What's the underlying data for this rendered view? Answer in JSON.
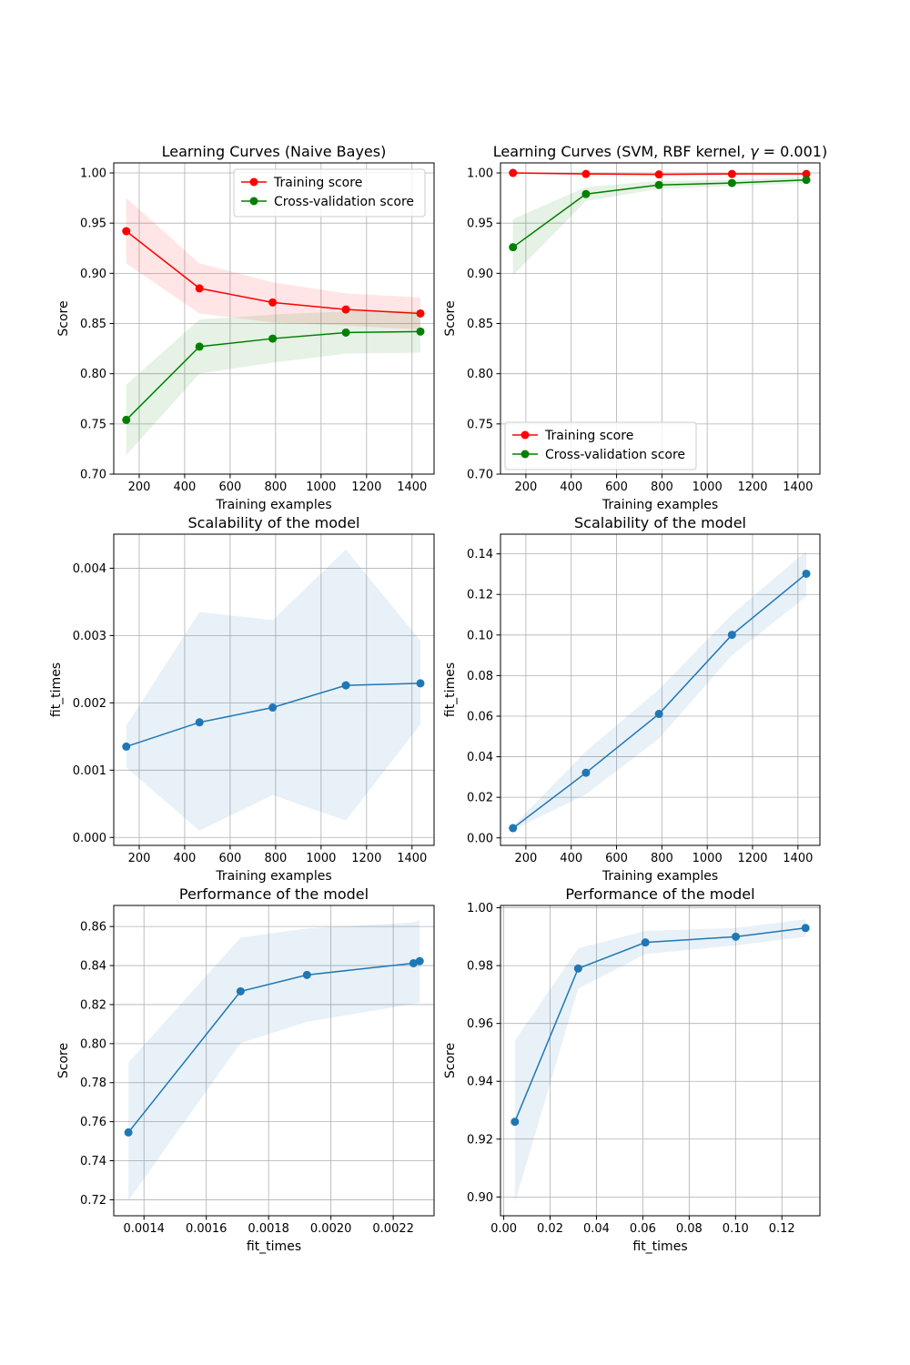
{
  "colors": {
    "train": "#ff0000",
    "cv": "#008000",
    "blue": "#1f77b4",
    "grid": "#b0b0b0",
    "axes": "#000000"
  },
  "chart_data": [
    {
      "id": "nb-learning",
      "type": "line",
      "title": "Learning Curves (Naive Bayes)",
      "title_parts": [
        {
          "t": "Learning Curves (Naive Bayes)"
        }
      ],
      "xlabel": "Training examples",
      "ylabel": "Score",
      "xlim": [
        88,
        1497
      ],
      "ylim": [
        0.7,
        1.01
      ],
      "xticks": [
        200,
        400,
        600,
        800,
        1000,
        1200,
        1400
      ],
      "xtick_labels": [
        "200",
        "400",
        "600",
        "800",
        "1000",
        "1200",
        "1400"
      ],
      "yticks": [
        0.7,
        0.75,
        0.8,
        0.85,
        0.9,
        0.95,
        1.0
      ],
      "ytick_labels": [
        "0.70",
        "0.75",
        "0.80",
        "0.85",
        "0.90",
        "0.95",
        "1.00"
      ],
      "grid": true,
      "legend": "upper-right",
      "x": [
        143,
        465,
        787,
        1109,
        1437
      ],
      "series": [
        {
          "name": "Training score",
          "color": "#ff0000",
          "values": [
            0.942,
            0.885,
            0.871,
            0.864,
            0.86
          ],
          "band_low": [
            0.91,
            0.86,
            0.851,
            0.848,
            0.844
          ],
          "band_high": [
            0.975,
            0.91,
            0.891,
            0.88,
            0.876
          ]
        },
        {
          "name": "Cross-validation score",
          "color": "#008000",
          "values": [
            0.754,
            0.827,
            0.835,
            0.841,
            0.842
          ],
          "band_low": [
            0.719,
            0.8,
            0.811,
            0.82,
            0.821
          ],
          "band_high": [
            0.789,
            0.854,
            0.859,
            0.862,
            0.863
          ]
        }
      ]
    },
    {
      "id": "svm-learning",
      "type": "line",
      "title": "Learning Curves (SVM, RBF kernel, γ = 0.001)",
      "title_parts": [
        {
          "t": "Learning Curves (SVM, RBF kernel, "
        },
        {
          "t": "γ",
          "italic": true
        },
        {
          "t": " = 0.001)"
        }
      ],
      "xlabel": "Training examples",
      "ylabel": "Score",
      "xlim": [
        88,
        1497
      ],
      "ylim": [
        0.7,
        1.01
      ],
      "xticks": [
        200,
        400,
        600,
        800,
        1000,
        1200,
        1400
      ],
      "xtick_labels": [
        "200",
        "400",
        "600",
        "800",
        "1000",
        "1200",
        "1400"
      ],
      "yticks": [
        0.7,
        0.75,
        0.8,
        0.85,
        0.9,
        0.95,
        1.0
      ],
      "ytick_labels": [
        "0.70",
        "0.75",
        "0.80",
        "0.85",
        "0.90",
        "0.95",
        "1.00"
      ],
      "grid": true,
      "legend": "lower-left",
      "x": [
        143,
        465,
        787,
        1109,
        1437
      ],
      "series": [
        {
          "name": "Training score",
          "color": "#ff0000",
          "values": [
            1.0,
            0.999,
            0.9985,
            0.999,
            0.999
          ],
          "band_low": [
            0.999,
            0.998,
            0.9975,
            0.998,
            0.998
          ],
          "band_high": [
            1.0,
            1.0,
            0.9995,
            1.0,
            1.0
          ]
        },
        {
          "name": "Cross-validation score",
          "color": "#008000",
          "values": [
            0.926,
            0.979,
            0.988,
            0.99,
            0.993
          ],
          "band_low": [
            0.898,
            0.972,
            0.984,
            0.987,
            0.99
          ],
          "band_high": [
            0.954,
            0.986,
            0.992,
            0.993,
            0.996
          ]
        }
      ]
    },
    {
      "id": "nb-scalability",
      "type": "line",
      "title": "Scalability of the model",
      "title_parts": [
        {
          "t": "Scalability of the model"
        }
      ],
      "xlabel": "Training examples",
      "ylabel": "fit_times",
      "xlim": [
        88,
        1497
      ],
      "ylim": [
        -0.000118,
        0.004506
      ],
      "xticks": [
        200,
        400,
        600,
        800,
        1000,
        1200,
        1400
      ],
      "xtick_labels": [
        "200",
        "400",
        "600",
        "800",
        "1000",
        "1200",
        "1400"
      ],
      "yticks": [
        0.0,
        0.001,
        0.002,
        0.003,
        0.004
      ],
      "ytick_labels": [
        "0.000",
        "0.001",
        "0.002",
        "0.003",
        "0.004"
      ],
      "grid": true,
      "legend": "none",
      "x": [
        143,
        465,
        787,
        1109,
        1437
      ],
      "series": [
        {
          "color": "#1f77b4",
          "values": [
            0.00135,
            0.00171,
            0.00193,
            0.00226,
            0.00229
          ],
          "band_low": [
            0.00104,
            0.0001,
            0.00063,
            0.00025,
            0.00168
          ],
          "band_high": [
            0.00166,
            0.00335,
            0.00323,
            0.00428,
            0.00292
          ]
        }
      ]
    },
    {
      "id": "svm-scalability",
      "type": "line",
      "title": "Scalability of the model",
      "title_parts": [
        {
          "t": "Scalability of the model"
        }
      ],
      "xlabel": "Training examples",
      "ylabel": "fit_times",
      "xlim": [
        88,
        1497
      ],
      "ylim": [
        -0.0037,
        0.1497
      ],
      "xticks": [
        200,
        400,
        600,
        800,
        1000,
        1200,
        1400
      ],
      "xtick_labels": [
        "200",
        "400",
        "600",
        "800",
        "1000",
        "1200",
        "1400"
      ],
      "yticks": [
        0.0,
        0.02,
        0.04,
        0.06,
        0.08,
        0.1,
        0.12,
        0.14
      ],
      "ytick_labels": [
        "0.00",
        "0.02",
        "0.04",
        "0.06",
        "0.08",
        "0.10",
        "0.12",
        "0.14"
      ],
      "grid": true,
      "legend": "none",
      "x": [
        143,
        465,
        787,
        1109,
        1437
      ],
      "series": [
        {
          "color": "#1f77b4",
          "values": [
            0.0048,
            0.0321,
            0.0611,
            0.1001,
            0.1302
          ],
          "band_low": [
            0.0038,
            0.0215,
            0.049,
            0.09,
            0.119
          ],
          "band_high": [
            0.0058,
            0.0427,
            0.0732,
            0.1102,
            0.1414
          ]
        }
      ]
    },
    {
      "id": "nb-performance",
      "type": "line",
      "title": "Performance of the model",
      "title_parts": [
        {
          "t": "Performance of the model"
        }
      ],
      "xlabel": "fit_times",
      "ylabel": "Score",
      "xlim": [
        0.001303,
        0.002331
      ],
      "ylim": [
        0.7118,
        0.8708
      ],
      "xticks": [
        0.0014,
        0.0016,
        0.0018,
        0.002,
        0.0022
      ],
      "xtick_labels": [
        "0.0014",
        "0.0016",
        "0.0018",
        "0.0020",
        "0.0022"
      ],
      "yticks": [
        0.72,
        0.74,
        0.76,
        0.78,
        0.8,
        0.82,
        0.84,
        0.86
      ],
      "ytick_labels": [
        "0.72",
        "0.74",
        "0.76",
        "0.78",
        "0.80",
        "0.82",
        "0.84",
        "0.86"
      ],
      "grid": true,
      "legend": "none",
      "x": [
        0.00135,
        0.00171,
        0.001923,
        0.002265,
        0.002285
      ],
      "series": [
        {
          "color": "#1f77b4",
          "values": [
            0.7545,
            0.8268,
            0.8352,
            0.8412,
            0.8423
          ],
          "band_low": [
            0.7196,
            0.8003,
            0.8111,
            0.8204,
            0.8211
          ],
          "band_high": [
            0.7903,
            0.8543,
            0.859,
            0.8621,
            0.8634
          ]
        }
      ]
    },
    {
      "id": "svm-performance",
      "type": "line",
      "title": "Performance of the model",
      "title_parts": [
        {
          "t": "Performance of the model"
        }
      ],
      "xlabel": "fit_times",
      "ylabel": "Score",
      "xlim": [
        -0.0014,
        0.1364
      ],
      "ylim": [
        0.8935,
        1.0008
      ],
      "xticks": [
        0.0,
        0.02,
        0.04,
        0.06,
        0.08,
        0.1,
        0.12
      ],
      "xtick_labels": [
        "0.00",
        "0.02",
        "0.04",
        "0.06",
        "0.08",
        "0.10",
        "0.12"
      ],
      "yticks": [
        0.9,
        0.92,
        0.94,
        0.96,
        0.98,
        1.0
      ],
      "ytick_labels": [
        "0.90",
        "0.92",
        "0.94",
        "0.96",
        "0.98",
        "1.00"
      ],
      "grid": true,
      "legend": "none",
      "x": [
        0.0048,
        0.0321,
        0.0611,
        0.1001,
        0.1302
      ],
      "series": [
        {
          "color": "#1f77b4",
          "values": [
            0.926,
            0.979,
            0.988,
            0.99,
            0.993
          ],
          "band_low": [
            0.898,
            0.972,
            0.984,
            0.987,
            0.99
          ],
          "band_high": [
            0.954,
            0.986,
            0.992,
            0.993,
            0.996
          ]
        }
      ]
    }
  ]
}
